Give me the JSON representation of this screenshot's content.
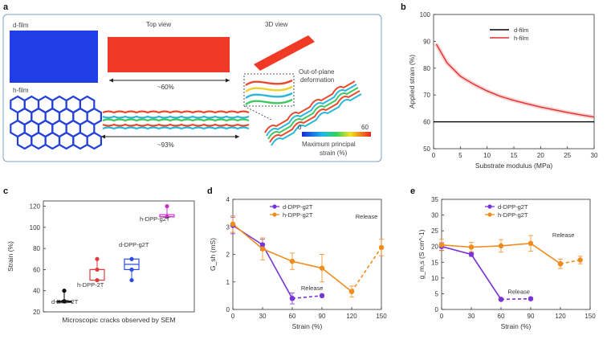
{
  "panels": {
    "a": {
      "letter": "a",
      "d_film_label": "d-film",
      "h_film_label": "h-film",
      "top_view_label": "Top view",
      "view_3d_label": "3D view",
      "shrink_d": "~60%",
      "shrink_h": "~93%",
      "deformation_label_1": "Out-of-plane",
      "deformation_label_2": "deformation",
      "colorbar_min": "0",
      "colorbar_max": "60",
      "colorbar_label_1": "Maximum principal",
      "colorbar_label_2": "strain (%)",
      "colors": {
        "d_film": "#1f3ee6",
        "top_view": "#f03a25",
        "h_film": "#2341d8"
      }
    },
    "b": {
      "letter": "b"
    },
    "c": {
      "letter": "c"
    },
    "d": {
      "letter": "d"
    },
    "e": {
      "letter": "e"
    }
  },
  "chart_data": [
    {
      "id": "b",
      "type": "line",
      "xlabel": "Substrate modulus (MPa)",
      "ylabel": "Applied strain (%)",
      "xlim": [
        0,
        30
      ],
      "ylim": [
        50,
        100
      ],
      "xticks": [
        "0",
        "5",
        "10",
        "15",
        "20",
        "25",
        "30"
      ],
      "yticks": [
        "50",
        "60",
        "70",
        "80",
        "90",
        "100"
      ],
      "legend_position": "top-right",
      "series": [
        {
          "name": "d-film",
          "color": "#000000",
          "x": [
            0,
            30
          ],
          "y": [
            60,
            60
          ]
        },
        {
          "name": "h-film",
          "color": "#e03030",
          "x": [
            0.5,
            2.5,
            5,
            7.5,
            10,
            12.5,
            15,
            17.5,
            20,
            22.5,
            25,
            27.5,
            30
          ],
          "y": [
            89,
            82,
            77,
            74,
            71.5,
            69.5,
            68,
            66.7,
            65.5,
            64.5,
            63.5,
            62.6,
            61.8
          ]
        }
      ]
    },
    {
      "id": "c",
      "type": "box",
      "xlabel": "Microscopic cracks observed by SEM",
      "ylabel": "Strain (%)",
      "ylim": [
        20,
        125
      ],
      "yticks": [
        "20",
        "40",
        "60",
        "80",
        "100",
        "120"
      ],
      "groups": [
        {
          "name": "d-DPP-2T",
          "color": "#000000",
          "q1": 30,
          "median": 30,
          "q3": 30,
          "min": 30,
          "max": 40,
          "points": [
            30,
            30,
            40
          ]
        },
        {
          "name": "h-DPP-2T",
          "color": "#e03a3a",
          "q1": 50,
          "median": 60,
          "q3": 60,
          "min": 50,
          "max": 70,
          "points": [
            50,
            60,
            70
          ]
        },
        {
          "name": "d-DPP-g2T",
          "color": "#2b4de0",
          "q1": 60,
          "median": 65,
          "q3": 70,
          "min": 50,
          "max": 70,
          "points": [
            50,
            60,
            70
          ]
        },
        {
          "name": "h-DPP-g2T",
          "color": "#cc33cc",
          "q1": 110,
          "median": 110,
          "q3": 112,
          "min": 110,
          "max": 120,
          "points": [
            110,
            120
          ]
        }
      ]
    },
    {
      "id": "d",
      "type": "line",
      "xlabel": "Strain (%)",
      "ylabel": "G_sh (mS)",
      "xlim": [
        0,
        150
      ],
      "ylim": [
        0,
        4
      ],
      "xticks": [
        "0",
        "30",
        "60",
        "90",
        "120",
        "150"
      ],
      "yticks": [
        "0",
        "1",
        "2",
        "3",
        "4"
      ],
      "legend_position": "top-left",
      "annotations": [
        {
          "text": "Release",
          "x": 135,
          "y": 3.3
        },
        {
          "text": "Release",
          "x": 80,
          "y": 0.7
        }
      ],
      "series": [
        {
          "name": "d-DPP-g2T",
          "color": "#7a34d6",
          "x": [
            0,
            30,
            60
          ],
          "y": [
            3.05,
            2.35,
            0.4
          ],
          "err": [
            0.3,
            0.2,
            0.2
          ]
        },
        {
          "name": "d-DPP-g2T release",
          "color": "#7a34d6",
          "dashed": true,
          "x": [
            60,
            90
          ],
          "y": [
            0.4,
            0.5
          ]
        },
        {
          "name": "h-DPP-g2T",
          "color": "#f08c1e",
          "x": [
            0,
            30,
            60,
            90,
            120
          ],
          "y": [
            3.1,
            2.2,
            1.75,
            1.5,
            0.65
          ],
          "err": [
            0.3,
            0.4,
            0.3,
            0.5,
            0.2
          ]
        },
        {
          "name": "h-DPP-g2T release",
          "color": "#f08c1e",
          "dashed": true,
          "x": [
            120,
            150
          ],
          "y": [
            0.65,
            2.25
          ],
          "err": [
            0,
            0.3
          ]
        }
      ]
    },
    {
      "id": "e",
      "type": "line",
      "xlabel": "Strain (%)",
      "ylabel": "g_m,s (S cm^-1)",
      "xlim": [
        0,
        150
      ],
      "ylim": [
        0,
        35
      ],
      "xticks": [
        "0",
        "30",
        "60",
        "90",
        "120",
        "150"
      ],
      "yticks": [
        "0",
        "5",
        "10",
        "15",
        "20",
        "25",
        "30",
        "35"
      ],
      "legend_position": "top-left",
      "annotations": [
        {
          "text": "Release",
          "x": 123,
          "y": 23
        },
        {
          "text": "Release",
          "x": 78,
          "y": 5
        }
      ],
      "series": [
        {
          "name": "d-DPP-g2T",
          "color": "#7a34d6",
          "x": [
            0,
            30,
            60
          ],
          "y": [
            20,
            17.5,
            3.2
          ],
          "err": [
            1.2,
            0.6,
            0.3
          ]
        },
        {
          "name": "d-DPP-g2T release",
          "color": "#7a34d6",
          "dashed": true,
          "x": [
            60,
            90
          ],
          "y": [
            3.2,
            3.4
          ]
        },
        {
          "name": "h-DPP-g2T",
          "color": "#f08c1e",
          "x": [
            0,
            30,
            60,
            90,
            120
          ],
          "y": [
            20.5,
            19.8,
            20.2,
            21,
            14.5
          ],
          "err": [
            1.8,
            1.5,
            2,
            2.5,
            1.5
          ]
        },
        {
          "name": "h-DPP-g2T release",
          "color": "#f08c1e",
          "dashed": true,
          "x": [
            120,
            140
          ],
          "y": [
            14.5,
            15.7
          ],
          "err": [
            0,
            1.2
          ]
        }
      ]
    }
  ]
}
